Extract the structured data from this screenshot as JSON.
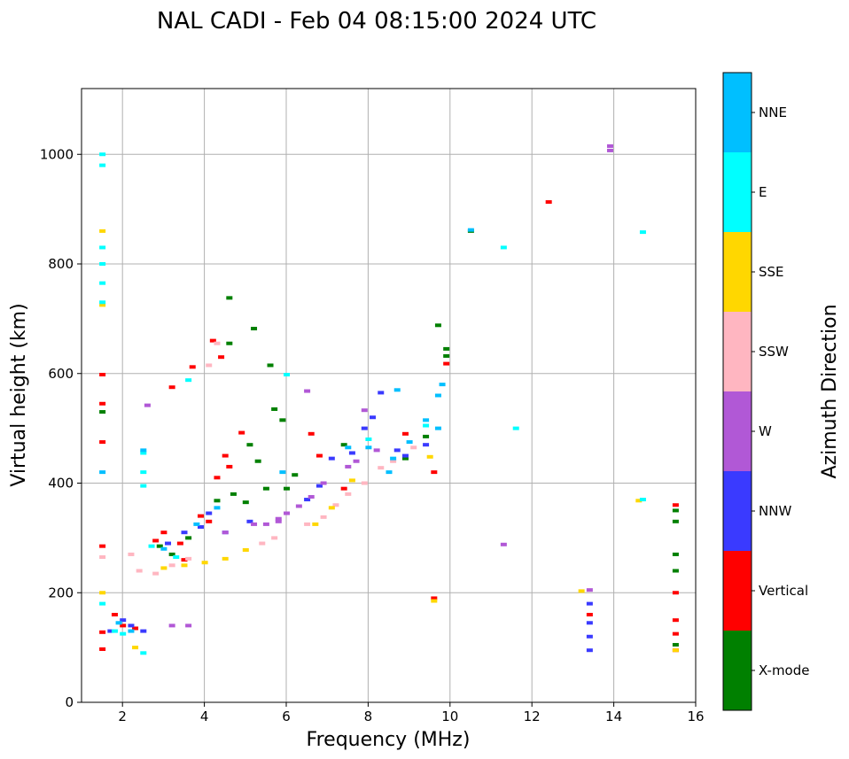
{
  "chart_data": {
    "type": "scatter",
    "title": "NAL CADI - Feb 04 08:15:00 2024 UTC",
    "xlabel": "Frequency (MHz)",
    "ylabel": "Virtual height (km)",
    "xlim": [
      1,
      16
    ],
    "ylim": [
      0,
      1120
    ],
    "xticks": [
      2,
      4,
      6,
      8,
      10,
      12,
      14,
      16
    ],
    "yticks": [
      0,
      200,
      400,
      600,
      800,
      1000
    ],
    "grid": true,
    "colorbar": {
      "label": "Azimuth Direction",
      "categories": [
        {
          "name": "X-mode",
          "color": "#008000"
        },
        {
          "name": "Vertical",
          "color": "#ff0000"
        },
        {
          "name": "NNW",
          "color": "#3a3aff"
        },
        {
          "name": "W",
          "color": "#b158d6"
        },
        {
          "name": "SSW",
          "color": "#ffb6c1"
        },
        {
          "name": "SSE",
          "color": "#ffd700"
        },
        {
          "name": "E",
          "color": "#00ffff"
        },
        {
          "name": "NNE",
          "color": "#00bfff"
        }
      ]
    },
    "series": [
      {
        "name": "X-mode",
        "points": [
          [
            1.5,
            530
          ],
          [
            4.6,
            738
          ],
          [
            5.2,
            682
          ],
          [
            5.6,
            615
          ],
          [
            5.7,
            535
          ],
          [
            5.9,
            515
          ],
          [
            9.7,
            688
          ],
          [
            9.9,
            645
          ],
          [
            9.9,
            632
          ],
          [
            8.9,
            445
          ],
          [
            9.4,
            485
          ],
          [
            5.3,
            440
          ],
          [
            5.1,
            470
          ],
          [
            4.7,
            380
          ],
          [
            4.3,
            368
          ],
          [
            5.0,
            365
          ],
          [
            5.5,
            390
          ],
          [
            6.2,
            415
          ],
          [
            7.4,
            470
          ],
          [
            3.2,
            270
          ],
          [
            3.6,
            300
          ],
          [
            2.9,
            285
          ],
          [
            4.6,
            655
          ],
          [
            6.0,
            390
          ],
          [
            10.5,
            860
          ],
          [
            15.5,
            350
          ],
          [
            15.5,
            330
          ],
          [
            15.5,
            270
          ],
          [
            15.5,
            240
          ],
          [
            15.5,
            105
          ]
        ]
      },
      {
        "name": "Vertical",
        "points": [
          [
            1.5,
            598
          ],
          [
            1.5,
            545
          ],
          [
            1.5,
            475
          ],
          [
            1.5,
            285
          ],
          [
            1.5,
            128
          ],
          [
            1.5,
            97
          ],
          [
            3.2,
            575
          ],
          [
            3.7,
            612
          ],
          [
            4.2,
            660
          ],
          [
            4.4,
            630
          ],
          [
            4.9,
            492
          ],
          [
            4.5,
            450
          ],
          [
            4.3,
            410
          ],
          [
            4.6,
            430
          ],
          [
            6.6,
            490
          ],
          [
            6.8,
            450
          ],
          [
            7.4,
            390
          ],
          [
            8.9,
            490
          ],
          [
            9.6,
            420
          ],
          [
            9.6,
            190
          ],
          [
            9.9,
            618
          ],
          [
            12.4,
            913
          ],
          [
            2.0,
            140
          ],
          [
            2.3,
            135
          ],
          [
            1.8,
            160
          ],
          [
            2.8,
            295
          ],
          [
            3.0,
            310
          ],
          [
            3.4,
            290
          ],
          [
            3.9,
            340
          ],
          [
            4.1,
            330
          ],
          [
            3.5,
            260
          ],
          [
            13.4,
            160
          ],
          [
            15.5,
            360
          ],
          [
            15.5,
            200
          ],
          [
            15.5,
            150
          ],
          [
            15.5,
            125
          ],
          [
            15.5,
            95
          ]
        ]
      },
      {
        "name": "NNW",
        "points": [
          [
            1.7,
            130
          ],
          [
            2.0,
            150
          ],
          [
            2.2,
            140
          ],
          [
            2.5,
            130
          ],
          [
            3.1,
            290
          ],
          [
            3.5,
            310
          ],
          [
            3.9,
            320
          ],
          [
            4.1,
            345
          ],
          [
            4.5,
            310
          ],
          [
            5.1,
            330
          ],
          [
            6.5,
            370
          ],
          [
            6.8,
            395
          ],
          [
            7.1,
            445
          ],
          [
            7.6,
            455
          ],
          [
            7.9,
            500
          ],
          [
            8.1,
            520
          ],
          [
            8.3,
            565
          ],
          [
            8.7,
            460
          ],
          [
            8.9,
            450
          ],
          [
            9.4,
            470
          ],
          [
            13.4,
            95
          ],
          [
            13.4,
            120
          ],
          [
            13.4,
            145
          ],
          [
            13.4,
            180
          ]
        ]
      },
      {
        "name": "W",
        "points": [
          [
            2.6,
            542
          ],
          [
            3.2,
            140
          ],
          [
            3.6,
            140
          ],
          [
            4.5,
            310
          ],
          [
            5.2,
            325
          ],
          [
            5.5,
            325
          ],
          [
            5.8,
            330
          ],
          [
            6.0,
            345
          ],
          [
            6.3,
            358
          ],
          [
            6.5,
            568
          ],
          [
            6.9,
            400
          ],
          [
            7.5,
            430
          ],
          [
            7.7,
            440
          ],
          [
            7.9,
            533
          ],
          [
            8.2,
            460
          ],
          [
            11.3,
            288
          ],
          [
            13.4,
            205
          ],
          [
            13.9,
            1015
          ],
          [
            13.9,
            1007
          ],
          [
            5.8,
            335
          ],
          [
            6.6,
            375
          ]
        ]
      },
      {
        "name": "SSW",
        "points": [
          [
            1.5,
            265
          ],
          [
            2.2,
            270
          ],
          [
            2.4,
            240
          ],
          [
            2.8,
            235
          ],
          [
            3.2,
            250
          ],
          [
            3.6,
            262
          ],
          [
            4.1,
            615
          ],
          [
            4.3,
            655
          ],
          [
            5.4,
            290
          ],
          [
            5.7,
            300
          ],
          [
            6.5,
            325
          ],
          [
            6.9,
            338
          ],
          [
            7.2,
            360
          ],
          [
            7.5,
            380
          ],
          [
            7.9,
            400
          ],
          [
            8.3,
            428
          ],
          [
            8.6,
            440
          ],
          [
            9.1,
            465
          ]
        ]
      },
      {
        "name": "SSE",
        "points": [
          [
            1.5,
            200
          ],
          [
            1.5,
            725
          ],
          [
            1.5,
            860
          ],
          [
            2.3,
            100
          ],
          [
            3.0,
            245
          ],
          [
            3.5,
            250
          ],
          [
            4.0,
            255
          ],
          [
            4.5,
            262
          ],
          [
            5.0,
            278
          ],
          [
            6.7,
            325
          ],
          [
            7.1,
            355
          ],
          [
            7.6,
            405
          ],
          [
            9.5,
            448
          ],
          [
            9.6,
            185
          ],
          [
            13.2,
            203
          ],
          [
            14.6,
            368
          ],
          [
            15.5,
            95
          ]
        ]
      },
      {
        "name": "E",
        "points": [
          [
            1.5,
            730
          ],
          [
            1.5,
            765
          ],
          [
            1.5,
            800
          ],
          [
            1.5,
            830
          ],
          [
            1.5,
            980
          ],
          [
            1.5,
            1000
          ],
          [
            1.5,
            180
          ],
          [
            2.5,
            395
          ],
          [
            2.5,
            420
          ],
          [
            2.5,
            455
          ],
          [
            3.6,
            588
          ],
          [
            6.0,
            598
          ],
          [
            8.0,
            480
          ],
          [
            9.4,
            505
          ],
          [
            11.3,
            830
          ],
          [
            11.6,
            500
          ],
          [
            14.7,
            858
          ],
          [
            14.7,
            370
          ],
          [
            1.8,
            130
          ],
          [
            2.0,
            125
          ],
          [
            2.7,
            285
          ],
          [
            3.3,
            265
          ],
          [
            2.5,
            90
          ]
        ]
      },
      {
        "name": "NNE",
        "points": [
          [
            1.5,
            420
          ],
          [
            2.2,
            130
          ],
          [
            1.9,
            145
          ],
          [
            2.5,
            460
          ],
          [
            3.0,
            280
          ],
          [
            3.8,
            325
          ],
          [
            4.3,
            355
          ],
          [
            5.9,
            420
          ],
          [
            7.5,
            465
          ],
          [
            8.0,
            465
          ],
          [
            8.6,
            445
          ],
          [
            8.7,
            570
          ],
          [
            9.4,
            515
          ],
          [
            9.7,
            560
          ],
          [
            9.8,
            580
          ],
          [
            9.7,
            500
          ],
          [
            9.0,
            475
          ],
          [
            8.5,
            420
          ],
          [
            10.5,
            862
          ]
        ]
      }
    ]
  }
}
